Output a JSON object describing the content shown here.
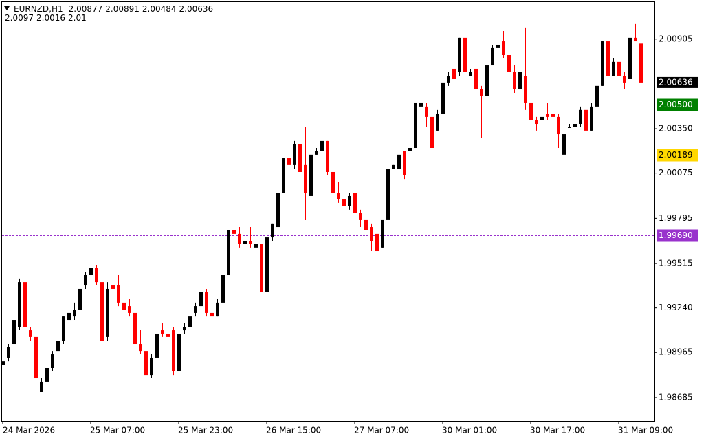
{
  "chart_data": {
    "type": "candlestick",
    "title": "EURNZD,H1",
    "indicator_values": [
      2.0097,
      2.0016,
      2.01
    ],
    "up_color": "#000000",
    "down_color": "#ff0000",
    "ylim": [
      1.9854,
      2.01134
    ],
    "yticks": [
      1.98685,
      1.98965,
      {
        "value": 1.9924,
        "label": "1.99240"
      },
      1.99515,
      1.99795,
      2.00075,
      {
        "value": 2.0035,
        "label": "2.00350"
      },
      2.00905
    ],
    "levels": [
      {
        "value": 2.005,
        "label": "2.00500",
        "color": "#008000"
      },
      {
        "value": 2.00189,
        "label": "2.00189",
        "color": "#ffd700"
      },
      {
        "value": 1.9969,
        "label": "1.99690",
        "color": "#9932cc"
      }
    ],
    "categories": [
      "24 Mar 2026",
      null,
      null,
      null,
      null,
      null,
      null,
      null,
      null,
      null,
      null,
      null,
      null,
      null,
      null,
      null,
      "25 Mar 07:00",
      null,
      null,
      null,
      null,
      null,
      null,
      null,
      null,
      null,
      null,
      null,
      null,
      null,
      null,
      null,
      "25 Mar 23:00",
      null,
      null,
      null,
      null,
      null,
      null,
      null,
      null,
      null,
      null,
      null,
      null,
      null,
      null,
      null,
      "26 Mar 15:00",
      null,
      null,
      null,
      null,
      null,
      null,
      null,
      null,
      null,
      null,
      null,
      null,
      null,
      null,
      null,
      "27 Mar 07:00",
      null,
      null,
      null,
      null,
      null,
      null,
      null,
      null,
      null,
      null,
      null,
      null,
      null,
      null,
      null,
      "30 Mar 01:00",
      null,
      null,
      null,
      null,
      null,
      null,
      null,
      null,
      null,
      null,
      null,
      null,
      null,
      null,
      null,
      "30 Mar 17:00",
      null,
      null,
      null,
      null,
      null,
      null,
      null,
      null,
      null,
      null,
      null,
      null,
      null,
      null,
      null,
      "31 Mar 09:00",
      null,
      null,
      null,
      null
    ],
    "open": [
      1.98889,
      1.98932,
      1.99017,
      1.99123,
      1.994,
      1.99102,
      1.9906,
      1.98719,
      1.98783,
      1.98868,
      1.98974,
      1.99038,
      1.99166,
      1.99187,
      1.9923,
      1.99379,
      1.99443,
      1.99486,
      1.994,
      1.9906,
      1.99379,
      1.99379,
      1.99273,
      1.99251,
      1.99209,
      1.99017,
      1.98974,
      1.98825,
      1.98932,
      1.99102,
      1.99081,
      1.99102,
      1.98847,
      1.99102,
      1.99123,
      1.99209,
      1.99251,
      1.99337,
      1.99209,
      1.99187,
      1.99273,
      1.99443,
      1.9972,
      1.99699,
      1.99635,
      1.99656,
      1.99614,
      1.99635,
      1.99337,
      1.99677,
      1.99741,
      1.99954,
      2.00167,
      2.00125,
      2.00253,
      2.00125,
      1.99933,
      2.00189,
      2.0021,
      2.00274,
      2.00082,
      1.99954,
      1.99912,
      1.99869,
      1.99954,
      1.99827,
      1.99784,
      1.99741,
      1.99699,
      1.99614,
      1.99784,
      2.00103,
      2.00103,
      2.0021,
      2.0021,
      2.00231,
      2.00487,
      2.00487,
      2.00423,
      2.00338,
      2.00444,
      2.00636,
      2.00721,
      2.007,
      2.00913,
      2.00678,
      2.00721,
      2.00593,
      2.00551,
      2.00742,
      2.00849,
      2.00891,
      2.00806,
      2.007,
      2.00593,
      2.00678,
      2.00508,
      2.00402,
      2.00402,
      2.00444,
      2.00444,
      2.00423,
      2.00189,
      2.00359,
      2.00359,
      2.0038,
      2.00466,
      2.00338,
      2.00487,
      2.00615,
      2.00891,
      2.00678,
      2.00764,
      2.00678,
      2.00657,
      2.00913,
      2.00877
    ],
    "high": [
      1.98932,
      1.99017,
      1.99187,
      1.99422,
      1.99464,
      1.99123,
      1.99081,
      1.98804,
      1.98889,
      1.98974,
      1.99038,
      1.99187,
      1.99315,
      1.99273,
      1.99379,
      1.99464,
      1.99507,
      1.99507,
      1.99443,
      1.994,
      1.994,
      1.99443,
      1.99443,
      1.99294,
      1.9923,
      1.99102,
      1.98996,
      1.98953,
      1.99145,
      1.99145,
      1.99102,
      1.99123,
      1.99102,
      1.99145,
      1.99251,
      1.99273,
      1.99358,
      1.99358,
      1.9923,
      1.99294,
      1.99443,
      1.9972,
      1.99805,
      1.99741,
      1.99677,
      1.99741,
      1.99635,
      1.99635,
      1.99677,
      1.99763,
      1.99976,
      2.00167,
      2.00231,
      2.00274,
      2.00359,
      2.00359,
      2.0021,
      2.00231,
      2.00402,
      2.00274,
      2.00103,
      2.00018,
      1.99954,
      1.99954,
      2.00018,
      1.99848,
      1.99805,
      1.99763,
      1.9972,
      1.99784,
      2.00103,
      2.00125,
      2.00189,
      2.0021,
      2.00231,
      2.00508,
      2.00508,
      2.00508,
      2.00444,
      2.00466,
      2.00636,
      2.007,
      2.00785,
      2.00913,
      2.00934,
      2.00721,
      2.00742,
      2.00615,
      2.00742,
      2.0087,
      2.00891,
      2.00955,
      2.00828,
      2.00742,
      2.00721,
      2.00977,
      2.00529,
      2.00423,
      2.00444,
      2.00508,
      2.00572,
      2.00444,
      2.00338,
      2.0038,
      2.00402,
      2.00487,
      2.00657,
      2.00508,
      2.00636,
      2.00891,
      2.00891,
      2.00785,
      2.00998,
      2.007,
      2.00977,
      2.00998,
      2.00891
    ],
    "low": [
      1.98868,
      1.9891,
      1.98996,
      1.99102,
      1.99102,
      1.99038,
      1.98591,
      1.98719,
      1.98761,
      1.98847,
      1.98953,
      1.99017,
      1.99145,
      1.99166,
      1.9923,
      1.99358,
      1.99422,
      1.99379,
      1.98996,
      1.99038,
      1.99337,
      1.99251,
      1.99209,
      1.99187,
      1.99017,
      1.98953,
      1.98719,
      1.98804,
      1.98932,
      1.9906,
      1.99038,
      1.98825,
      1.98825,
      1.99081,
      1.99102,
      1.99187,
      1.9923,
      1.99187,
      1.99166,
      1.99187,
      1.99273,
      1.99443,
      1.99677,
      1.99614,
      1.99614,
      1.99614,
      1.99614,
      1.99337,
      1.99337,
      1.99656,
      1.99741,
      1.99954,
      2.00103,
      2.00103,
      1.99848,
      1.99784,
      1.99933,
      2.00189,
      2.0021,
      2.00061,
      1.99933,
      1.99891,
      1.99848,
      1.99848,
      1.99805,
      1.99741,
      1.9955,
      1.99592,
      1.99507,
      1.99614,
      1.99784,
      2.00103,
      2.00103,
      2.00039,
      2.0021,
      2.00231,
      2.00466,
      2.00359,
      2.0021,
      2.00338,
      2.00444,
      2.00615,
      2.00657,
      2.00678,
      2.00678,
      2.00678,
      2.00466,
      2.00295,
      2.00529,
      2.00742,
      2.00849,
      2.00785,
      2.007,
      2.00572,
      2.00593,
      2.00466,
      2.00338,
      2.00338,
      2.00402,
      2.00402,
      2.0038,
      2.00231,
      2.00167,
      2.00359,
      2.00359,
      2.00359,
      2.00253,
      2.00338,
      2.00487,
      2.00615,
      2.00636,
      2.00678,
      2.00657,
      2.00593,
      2.00636,
      2.00891,
      2.00484
    ],
    "close": [
      1.9891,
      1.98996,
      1.99166,
      1.994,
      1.99123,
      1.9906,
      1.98804,
      1.98783,
      1.98868,
      1.98953,
      1.99038,
      1.99187,
      1.99209,
      1.9923,
      1.99358,
      1.99443,
      1.99486,
      1.994,
      1.99038,
      1.99358,
      1.99358,
      1.99273,
      1.9923,
      1.99209,
      1.99017,
      1.98974,
      1.98825,
      1.98932,
      1.99081,
      1.99081,
      1.9906,
      1.98847,
      1.99081,
      1.99123,
      1.99187,
      1.99251,
      1.99337,
      1.99209,
      1.99187,
      1.99273,
      1.99443,
      1.9972,
      1.99699,
      1.99635,
      1.99656,
      1.99635,
      1.99635,
      1.99337,
      1.99677,
      1.99763,
      1.99954,
      2.00167,
      2.00125,
      2.00253,
      2.00082,
      1.99954,
      2.00189,
      2.0021,
      2.00274,
      2.00082,
      1.99954,
      1.99912,
      1.99869,
      1.99933,
      1.99827,
      1.99784,
      1.9972,
      1.99656,
      1.99592,
      1.99784,
      2.00103,
      2.00125,
      2.00189,
      2.00061,
      2.00231,
      2.00508,
      2.00508,
      2.00423,
      2.00231,
      2.00444,
      2.00636,
      2.00678,
      2.00657,
      2.00913,
      2.007,
      2.007,
      2.00593,
      2.00551,
      2.00742,
      2.00849,
      2.0087,
      2.00806,
      2.007,
      2.00593,
      2.007,
      2.00508,
      2.00402,
      2.0038,
      2.00423,
      2.00423,
      2.00423,
      2.00316,
      2.00316,
      2.00359,
      2.0038,
      2.00466,
      2.00338,
      2.00487,
      2.00615,
      2.00891,
      2.00678,
      2.00764,
      2.00678,
      2.00636,
      2.00913,
      2.00891,
      2.00636
    ]
  }
}
